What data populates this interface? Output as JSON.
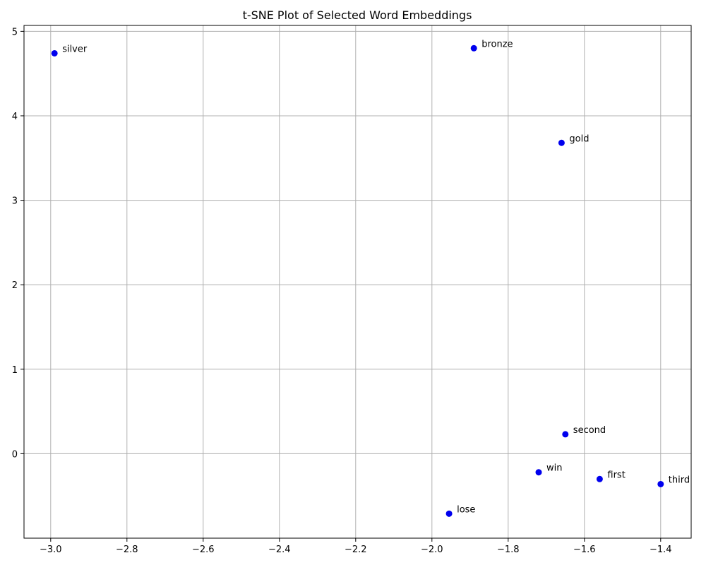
{
  "chart_data": {
    "type": "scatter",
    "title": "t-SNE Plot of Selected Word Embeddings",
    "xlabel": "",
    "ylabel": "",
    "xlim": [
      -3.07,
      -1.32
    ],
    "ylim": [
      -1.0,
      5.07
    ],
    "x_ticks": [
      -3.0,
      -2.8,
      -2.6,
      -2.4,
      -2.2,
      -2.0,
      -1.8,
      -1.6,
      -1.4
    ],
    "x_tick_labels": [
      "−3.0",
      "−2.8",
      "−2.6",
      "−2.4",
      "−2.2",
      "−2.0",
      "−1.8",
      "−1.6",
      "−1.4"
    ],
    "y_ticks": [
      0,
      1,
      2,
      3,
      4,
      5
    ],
    "y_tick_labels": [
      "0",
      "1",
      "2",
      "3",
      "4",
      "5"
    ],
    "grid": true,
    "point_color": "#0000ee",
    "points": [
      {
        "label": "silver",
        "x": -2.99,
        "y": 4.74
      },
      {
        "label": "bronze",
        "x": -1.89,
        "y": 4.8
      },
      {
        "label": "gold",
        "x": -1.66,
        "y": 3.68
      },
      {
        "label": "second",
        "x": -1.65,
        "y": 0.23
      },
      {
        "label": "win",
        "x": -1.72,
        "y": -0.22
      },
      {
        "label": "first",
        "x": -1.56,
        "y": -0.3
      },
      {
        "label": "third",
        "x": -1.4,
        "y": -0.36
      },
      {
        "label": "lose",
        "x": -1.955,
        "y": -0.71
      }
    ]
  }
}
